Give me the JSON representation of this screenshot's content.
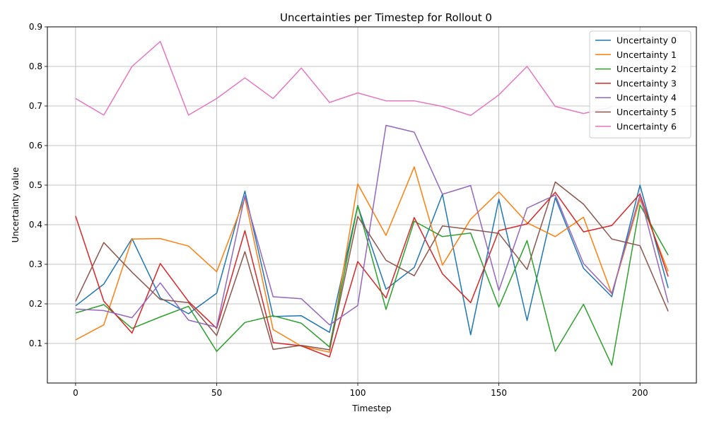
{
  "chart_data": {
    "type": "line",
    "title": "Uncertainties per Timestep for Rollout 0",
    "xlabel": "Timestep",
    "ylabel": "Uncertainty value",
    "xlim": [
      -10,
      220
    ],
    "ylim": [
      0.0,
      0.9
    ],
    "xticks": [
      0,
      50,
      100,
      150,
      200
    ],
    "yticks": [
      0.1,
      0.2,
      0.3,
      0.4,
      0.5,
      0.6,
      0.7,
      0.8,
      0.9
    ],
    "grid": true,
    "legend_position": "top-right",
    "x": [
      0,
      10,
      20,
      30,
      40,
      50,
      60,
      70,
      80,
      90,
      100,
      110,
      120,
      130,
      140,
      150,
      160,
      170,
      180,
      190,
      200,
      210
    ],
    "series": [
      {
        "name": "Uncertainty 0",
        "color": "#1f77b4",
        "values": [
          0.195,
          0.25,
          0.365,
          0.215,
          0.175,
          0.227,
          0.485,
          0.168,
          0.17,
          0.128,
          0.448,
          0.237,
          0.292,
          0.477,
          0.122,
          0.465,
          0.158,
          0.468,
          0.29,
          0.218,
          0.5,
          0.24
        ]
      },
      {
        "name": "Uncertainty 1",
        "color": "#ff7f0e",
        "values": [
          0.109,
          0.147,
          0.364,
          0.365,
          0.346,
          0.281,
          0.468,
          0.135,
          0.093,
          0.078,
          0.503,
          0.373,
          0.546,
          0.298,
          0.414,
          0.483,
          0.405,
          0.37,
          0.419,
          0.225,
          0.465,
          0.282
        ]
      },
      {
        "name": "Uncertainty 2",
        "color": "#2ca02c",
        "values": [
          0.177,
          0.198,
          0.138,
          0.167,
          0.194,
          0.08,
          0.153,
          0.17,
          0.151,
          0.091,
          0.449,
          0.186,
          0.409,
          0.37,
          0.379,
          0.192,
          0.36,
          0.08,
          0.199,
          0.045,
          0.45,
          0.323
        ]
      },
      {
        "name": "Uncertainty 3",
        "color": "#d62728",
        "values": [
          0.422,
          0.207,
          0.126,
          0.302,
          0.206,
          0.138,
          0.385,
          0.102,
          0.094,
          0.066,
          0.307,
          0.215,
          0.418,
          0.276,
          0.203,
          0.385,
          0.402,
          0.482,
          0.382,
          0.398,
          0.478,
          0.269
        ]
      },
      {
        "name": "Uncertainty 4",
        "color": "#9467bd",
        "values": [
          0.187,
          0.183,
          0.165,
          0.253,
          0.159,
          0.141,
          0.473,
          0.218,
          0.213,
          0.147,
          0.196,
          0.651,
          0.634,
          0.477,
          0.499,
          0.234,
          0.442,
          0.475,
          0.302,
          0.226,
          0.475,
          0.203
        ]
      },
      {
        "name": "Uncertainty 5",
        "color": "#8c564b",
        "values": [
          0.206,
          0.355,
          0.28,
          0.211,
          0.203,
          0.12,
          0.332,
          0.085,
          0.095,
          0.084,
          0.421,
          0.31,
          0.271,
          0.397,
          0.388,
          0.378,
          0.287,
          0.508,
          0.452,
          0.364,
          0.347,
          0.181
        ]
      },
      {
        "name": "Uncertainty 6",
        "color": "#e377c2",
        "values": [
          0.719,
          0.677,
          0.8,
          0.863,
          0.677,
          0.719,
          0.771,
          0.719,
          0.796,
          0.709,
          0.733,
          0.713,
          0.713,
          0.699,
          0.676,
          0.728,
          0.8,
          0.699,
          0.681,
          0.697,
          null,
          null
        ]
      }
    ]
  }
}
